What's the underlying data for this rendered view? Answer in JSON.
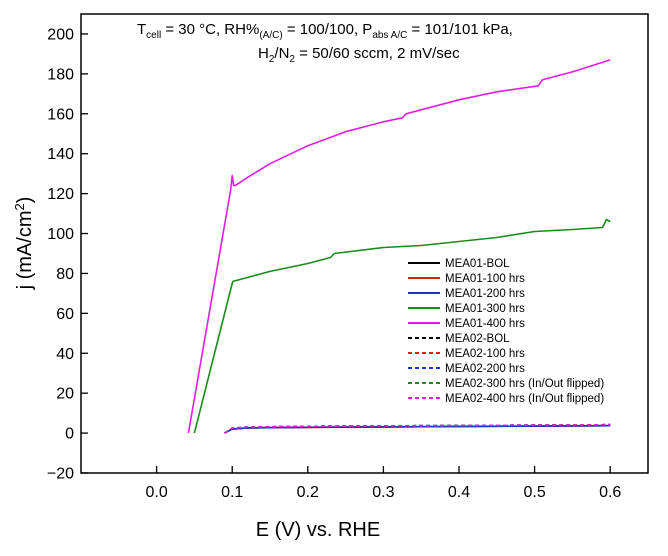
{
  "chart_data": {
    "type": "line",
    "xlabel": "E (V) vs. RHE",
    "ylabel": "j (mA/cm²)",
    "xlim": [
      -0.1,
      0.65
    ],
    "ylim": [
      -20,
      210
    ],
    "xticks": [
      0.0,
      0.1,
      0.2,
      0.3,
      0.4,
      0.5,
      0.6
    ],
    "xtick_labels": [
      "0.0",
      "0.1",
      "0.2",
      "0.3",
      "0.4",
      "0.5",
      "0.6"
    ],
    "yticks": [
      -20,
      0,
      20,
      40,
      60,
      80,
      100,
      120,
      140,
      160,
      180,
      200
    ],
    "ytick_labels": [
      "−20",
      "0",
      "20",
      "40",
      "60",
      "80",
      "100",
      "120",
      "140",
      "160",
      "180",
      "200"
    ],
    "grid": false,
    "legend_position": "lower-right",
    "annotation": {
      "line1": "T_cell = 30 °C, RH%_(A/C) = 100/100,  P_abs A/C = 101/101 kPa,",
      "line2": "H₂/N₂ = 50/60 sccm, 2 mV/sec"
    },
    "series": [
      {
        "name": "MEA01-BOL",
        "color": "#000000",
        "dash": false,
        "x": [
          0.09,
          0.1,
          0.12,
          0.2,
          0.3,
          0.4,
          0.5,
          0.6
        ],
        "y": [
          0,
          2,
          2.6,
          2.9,
          3.1,
          3.3,
          3.5,
          3.7
        ]
      },
      {
        "name": "MEA01-100 hrs",
        "color": "#e41a1c",
        "dash": false,
        "x": [
          0.09,
          0.1,
          0.12,
          0.2,
          0.3,
          0.4,
          0.5,
          0.6
        ],
        "y": [
          0,
          2,
          2.6,
          2.9,
          3.1,
          3.3,
          3.5,
          3.7
        ]
      },
      {
        "name": "MEA01-200 hrs",
        "color": "#1f2fd0",
        "dash": false,
        "x": [
          0.09,
          0.1,
          0.12,
          0.2,
          0.3,
          0.4,
          0.5,
          0.6
        ],
        "y": [
          0,
          2,
          2.6,
          2.9,
          3.1,
          3.3,
          3.5,
          3.7
        ]
      },
      {
        "name": "MEA01-300 hrs",
        "color": "#1a8a1a",
        "dash": false,
        "x": [
          0.05,
          0.1,
          0.101,
          0.15,
          0.2,
          0.23,
          0.235,
          0.3,
          0.35,
          0.4,
          0.45,
          0.5,
          0.55,
          0.59,
          0.595,
          0.6
        ],
        "y": [
          0,
          75,
          76,
          81,
          85,
          88,
          90,
          93,
          94,
          96,
          98,
          101,
          102,
          103,
          107,
          106
        ]
      },
      {
        "name": "MEA01-400 hrs",
        "color": "#e020e0",
        "dash": false,
        "x": [
          0.042,
          0.098,
          0.1,
          0.102,
          0.104,
          0.12,
          0.15,
          0.2,
          0.25,
          0.3,
          0.325,
          0.33,
          0.4,
          0.45,
          0.505,
          0.51,
          0.55,
          0.6
        ],
        "y": [
          0,
          122,
          129,
          124,
          124,
          128,
          135,
          144,
          151,
          156,
          158,
          160,
          167,
          171,
          174,
          177,
          181,
          187
        ]
      },
      {
        "name": "MEA02-BOL",
        "color": "#000000",
        "dash": true,
        "x": [
          0.09,
          0.1,
          0.12,
          0.2,
          0.3,
          0.4,
          0.5,
          0.6
        ],
        "y": [
          0,
          2.5,
          3,
          3.4,
          3.6,
          3.8,
          4.0,
          4.2
        ]
      },
      {
        "name": "MEA02-100 hrs",
        "color": "#e41a1c",
        "dash": true,
        "x": [
          0.09,
          0.1,
          0.12,
          0.2,
          0.3,
          0.4,
          0.5,
          0.6
        ],
        "y": [
          0,
          2.5,
          3,
          3.4,
          3.6,
          3.8,
          4.0,
          4.2
        ]
      },
      {
        "name": "MEA02-200 hrs",
        "color": "#1f2fd0",
        "dash": true,
        "x": [
          0.09,
          0.1,
          0.12,
          0.2,
          0.3,
          0.4,
          0.5,
          0.6
        ],
        "y": [
          0,
          2.5,
          3,
          3.4,
          3.6,
          3.8,
          4.0,
          4.2
        ]
      },
      {
        "name": "MEA02-300 hrs (In/Out flipped)",
        "color": "#1a8a1a",
        "dash": true,
        "x": [
          0.09,
          0.1,
          0.12,
          0.2,
          0.3,
          0.4,
          0.5,
          0.6
        ],
        "y": [
          0,
          2.5,
          3,
          3.4,
          3.6,
          3.8,
          4.0,
          4.2
        ]
      },
      {
        "name": "MEA02-400 hrs (In/Out flipped)",
        "color": "#e020e0",
        "dash": true,
        "x": [
          0.09,
          0.1,
          0.12,
          0.2,
          0.3,
          0.4,
          0.5,
          0.6
        ],
        "y": [
          0,
          2.5,
          3,
          3.4,
          3.6,
          3.8,
          4.0,
          4.2
        ]
      }
    ]
  }
}
